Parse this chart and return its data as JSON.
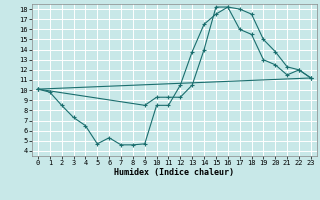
{
  "xlabel": "Humidex (Indice chaleur)",
  "bg_color": "#c8e8e8",
  "grid_color": "#ffffff",
  "line_color": "#1a6e6e",
  "xlim": [
    -0.5,
    23.5
  ],
  "ylim": [
    3.5,
    18.5
  ],
  "xticks": [
    0,
    1,
    2,
    3,
    4,
    5,
    6,
    7,
    8,
    9,
    10,
    11,
    12,
    13,
    14,
    15,
    16,
    17,
    18,
    19,
    20,
    21,
    22,
    23
  ],
  "yticks": [
    4,
    5,
    6,
    7,
    8,
    9,
    10,
    11,
    12,
    13,
    14,
    15,
    16,
    17,
    18
  ],
  "line1_x": [
    0,
    1,
    2,
    3,
    4,
    5,
    6,
    7,
    8,
    9,
    10,
    11,
    12,
    13,
    14,
    15,
    16,
    17,
    18,
    19,
    20,
    21,
    22,
    23
  ],
  "line1_y": [
    10.1,
    9.8,
    8.5,
    7.3,
    6.5,
    4.7,
    5.3,
    4.6,
    4.6,
    4.7,
    8.5,
    8.5,
    10.5,
    13.8,
    16.5,
    17.5,
    18.2,
    18.0,
    17.5,
    15.0,
    13.8,
    12.3,
    12.0,
    11.2
  ],
  "line2_x": [
    0,
    9,
    10,
    11,
    12,
    13,
    14,
    15,
    16,
    17,
    18,
    19,
    20,
    21,
    22,
    23
  ],
  "line2_y": [
    10.1,
    8.5,
    9.3,
    9.3,
    9.3,
    10.5,
    14.0,
    18.2,
    18.2,
    16.0,
    15.5,
    13.0,
    12.5,
    11.5,
    12.0,
    11.2
  ],
  "line3_x": [
    0,
    23
  ],
  "line3_y": [
    10.1,
    11.2
  ]
}
